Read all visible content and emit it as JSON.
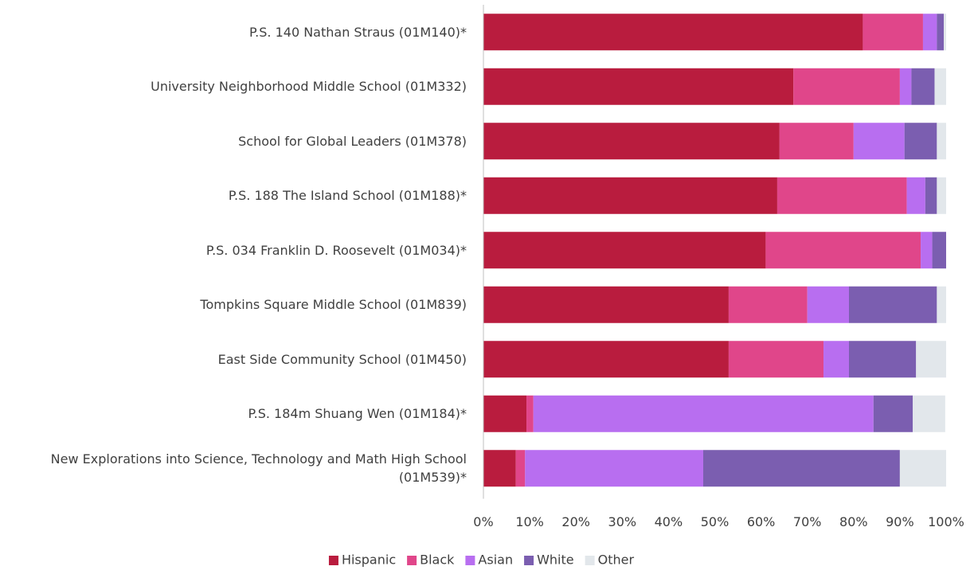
{
  "chart_data": {
    "type": "stacked_bar_horizontal",
    "categories": [
      "P.S. 140 Nathan Straus (01M140)*",
      "University Neighborhood Middle School (01M332)",
      "School for Global Leaders (01M378)",
      "P.S. 188 The Island School (01M188)*",
      "P.S. 034 Franklin D. Roosevelt (01M034)*",
      "Tompkins Square Middle School (01M839)",
      "East Side Community School (01M450)",
      "P.S. 184m Shuang Wen (01M184)*",
      "New Explorations into Science, Technology and Math High School (01M539)*"
    ],
    "series": [
      {
        "name": "Hispanic",
        "color": "#b91c3e",
        "values": [
          82,
          67,
          64,
          63.5,
          61,
          53,
          53,
          9.3,
          7
        ]
      },
      {
        "name": "Black",
        "color": "#e0468a",
        "values": [
          13,
          23,
          16,
          28,
          33.5,
          17,
          20.5,
          1.5,
          2
        ]
      },
      {
        "name": "Asian",
        "color": "#b86ef0",
        "values": [
          3,
          2.5,
          11,
          4,
          2.5,
          9,
          5.5,
          73.5,
          38.5
        ]
      },
      {
        "name": "White",
        "color": "#7b5eb0",
        "values": [
          1.5,
          5,
          7,
          2.5,
          3,
          19,
          14.5,
          8.5,
          42.5
        ]
      },
      {
        "name": "Other",
        "color": "#e2e7eb",
        "values": [
          0.5,
          2.5,
          2,
          2,
          0,
          2,
          6.5,
          7,
          10
        ]
      }
    ],
    "xlim": [
      0,
      100
    ],
    "xticks": [
      {
        "value": 0,
        "label": "0%"
      },
      {
        "value": 10,
        "label": "10%"
      },
      {
        "value": 20,
        "label": "20%"
      },
      {
        "value": 30,
        "label": "30%"
      },
      {
        "value": 40,
        "label": "40%"
      },
      {
        "value": 50,
        "label": "50%"
      },
      {
        "value": 60,
        "label": "60%"
      },
      {
        "value": 70,
        "label": "70%"
      },
      {
        "value": 80,
        "label": "80%"
      },
      {
        "value": 90,
        "label": "90%"
      },
      {
        "value": 100,
        "label": "100%"
      }
    ],
    "legend": "bottom"
  }
}
